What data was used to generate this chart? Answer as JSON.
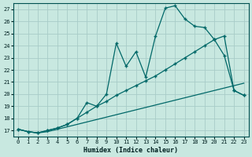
{
  "xlabel": "Humidex (Indice chaleur)",
  "background_color": "#c8e8e0",
  "grid_color": "#a8ccc8",
  "line_color": "#006868",
  "xlim": [
    -0.5,
    23.5
  ],
  "ylim": [
    16.5,
    27.5
  ],
  "xticks": [
    0,
    1,
    2,
    3,
    4,
    5,
    6,
    7,
    8,
    9,
    10,
    11,
    12,
    13,
    14,
    15,
    16,
    17,
    18,
    19,
    20,
    21,
    22,
    23
  ],
  "yticks": [
    17,
    18,
    19,
    20,
    21,
    22,
    23,
    24,
    25,
    26,
    27
  ],
  "line1_x": [
    0,
    1,
    2,
    3,
    4,
    5,
    6,
    7,
    8,
    9,
    10,
    11,
    12,
    13,
    14,
    15,
    16,
    17,
    18,
    19,
    20,
    21,
    22,
    23
  ],
  "line1_y": [
    17.1,
    16.9,
    16.8,
    16.9,
    17.1,
    17.3,
    17.5,
    17.7,
    17.9,
    18.1,
    18.3,
    18.5,
    18.7,
    18.9,
    19.1,
    19.3,
    19.5,
    19.7,
    19.9,
    20.1,
    20.3,
    20.5,
    20.7,
    20.9
  ],
  "line2_x": [
    0,
    1,
    2,
    3,
    4,
    5,
    6,
    7,
    8,
    9,
    10,
    11,
    12,
    13,
    14,
    15,
    16,
    17,
    18,
    19,
    20,
    21,
    22,
    23
  ],
  "line2_y": [
    17.1,
    16.9,
    16.8,
    17.0,
    17.2,
    17.5,
    18.0,
    18.5,
    19.0,
    19.4,
    19.9,
    20.3,
    20.7,
    21.1,
    21.5,
    22.0,
    22.5,
    23.0,
    23.5,
    24.0,
    24.5,
    24.8,
    20.3,
    19.9
  ],
  "line3_x": [
    0,
    1,
    2,
    3,
    4,
    5,
    6,
    7,
    8,
    9,
    10,
    11,
    12,
    13,
    14,
    15,
    16,
    17,
    18,
    19,
    20,
    21,
    22,
    23
  ],
  "line3_y": [
    17.1,
    16.9,
    16.8,
    17.0,
    17.2,
    17.5,
    18.0,
    19.3,
    19.0,
    20.0,
    24.2,
    22.3,
    23.5,
    21.4,
    24.8,
    27.1,
    27.3,
    26.2,
    25.6,
    25.5,
    24.5,
    23.2,
    20.3,
    19.9
  ]
}
